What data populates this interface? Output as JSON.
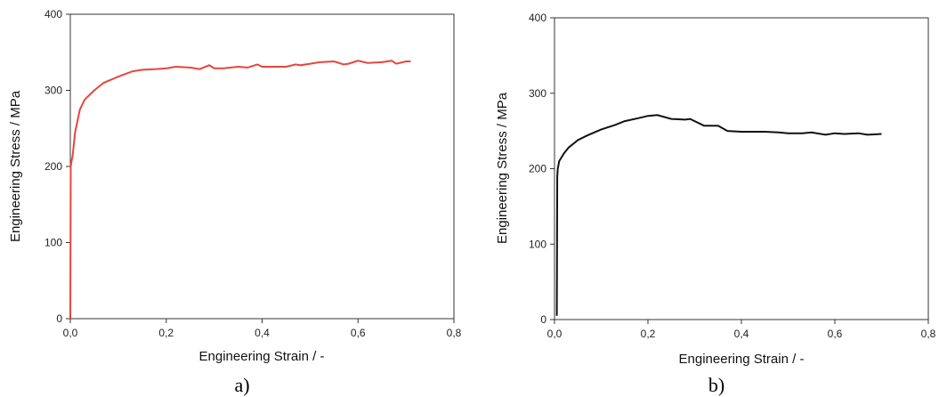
{
  "chart_data": [
    {
      "type": "line",
      "panel_label": "a)",
      "title": "",
      "xlabel": "Engineering Strain / -",
      "ylabel": "Engineering Stress / MPa",
      "xlim": [
        0,
        0.8
      ],
      "ylim": [
        0,
        400
      ],
      "xticks": [
        "0,0",
        "0,2",
        "0,4",
        "0,6",
        "0,8"
      ],
      "yticks": [
        "0",
        "100",
        "200",
        "300",
        "400"
      ],
      "grid": false,
      "legend": "none",
      "color": "#e8453c",
      "series": [
        {
          "x": [
            0,
            0.001,
            0.002,
            0.005,
            0.01,
            0.02,
            0.03,
            0.05,
            0.07,
            0.1,
            0.13,
            0.15,
            0.18,
            0.2,
            0.22,
            0.25,
            0.27,
            0.29,
            0.3,
            0.32,
            0.35,
            0.37,
            0.39,
            0.4,
            0.42,
            0.45,
            0.47,
            0.48,
            0.5,
            0.52,
            0.55,
            0.57,
            0.58,
            0.6,
            0.62,
            0.65,
            0.67,
            0.68,
            0.7,
            0.71
          ],
          "y": [
            0,
            200,
            205,
            215,
            245,
            275,
            288,
            300,
            310,
            318,
            325,
            327,
            328,
            329,
            331,
            330,
            328,
            333,
            329,
            329,
            331,
            330,
            334,
            331,
            331,
            331,
            334,
            333,
            335,
            337,
            338,
            334,
            335,
            339,
            336,
            337,
            339,
            335,
            338,
            338
          ]
        }
      ]
    },
    {
      "type": "line",
      "panel_label": "b)",
      "title": "",
      "xlabel": "Engineering Strain / -",
      "ylabel": "Engineering Stress / MPa",
      "xlim": [
        0,
        0.8
      ],
      "ylim": [
        0,
        400
      ],
      "xticks": [
        "0,0",
        "0,2",
        "0,4",
        "0,6",
        "0,8"
      ],
      "yticks": [
        "0",
        "100",
        "200",
        "300",
        "400"
      ],
      "grid": false,
      "legend": "none",
      "color": "#111111",
      "series": [
        {
          "x": [
            0.005,
            0.006,
            0.007,
            0.01,
            0.02,
            0.03,
            0.05,
            0.07,
            0.1,
            0.13,
            0.15,
            0.18,
            0.2,
            0.22,
            0.25,
            0.28,
            0.29,
            0.32,
            0.35,
            0.37,
            0.4,
            0.43,
            0.45,
            0.48,
            0.5,
            0.53,
            0.55,
            0.58,
            0.6,
            0.62,
            0.65,
            0.67,
            0.7
          ],
          "y": [
            5,
            190,
            200,
            210,
            220,
            228,
            238,
            244,
            252,
            258,
            263,
            267,
            270,
            271,
            266,
            265,
            266,
            257,
            257,
            250,
            249,
            249,
            249,
            248,
            247,
            247,
            248,
            245,
            247,
            246,
            247,
            245,
            246
          ]
        }
      ]
    }
  ]
}
